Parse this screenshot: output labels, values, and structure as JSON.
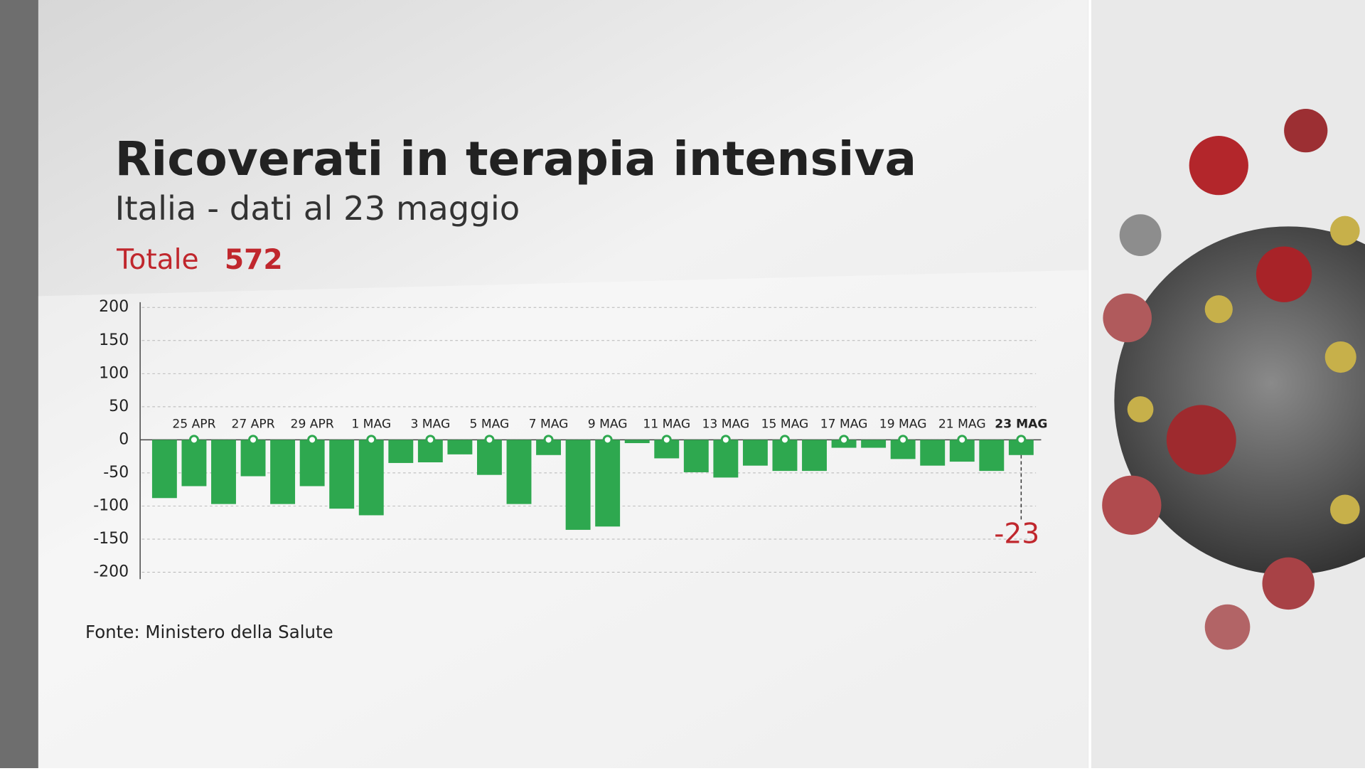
{
  "chart_data": {
    "type": "bar",
    "title": "Ricoverati in terapia intensiva",
    "subtitle": "Italia - dati al 23 maggio",
    "total_label": "Totale",
    "total": 572,
    "source": "Fonte: Ministero della Salute",
    "categories": [
      null,
      "25 APR",
      null,
      "27 APR",
      null,
      "29 APR",
      null,
      "1 MAG",
      null,
      "3 MAG",
      null,
      "5 MAG",
      null,
      "7 MAG",
      null,
      "9 MAG",
      null,
      "11 MAG",
      null,
      "13 MAG",
      null,
      "15 MAG",
      null,
      "17 MAG",
      null,
      "19 MAG",
      null,
      "21 MAG",
      null,
      "23 MAG"
    ],
    "values": [
      -88,
      -70,
      -97,
      -55,
      -97,
      -70,
      -104,
      -114,
      -35,
      -34,
      -22,
      -53,
      -97,
      -23,
      -136,
      -131,
      -5,
      -28,
      -49,
      -57,
      -39,
      -47,
      -47,
      -12,
      -12,
      -29,
      -39,
      -33,
      -47,
      -23
    ],
    "color": "#2ea84f",
    "highlight_color": "#c0272d",
    "ylim": [
      -200,
      200
    ],
    "yticks": [
      -200,
      -150,
      -100,
      -50,
      0,
      50,
      100,
      150,
      200
    ],
    "grid": true
  }
}
